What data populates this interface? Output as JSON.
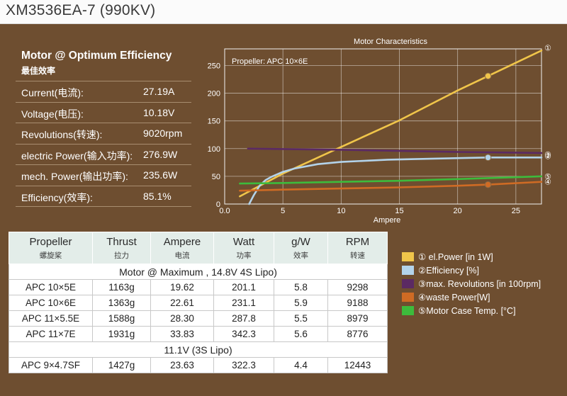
{
  "page_title": "XM3536EA-7 (990KV)",
  "optimum": {
    "heading": "Motor @ Optimum Efficiency",
    "subheading": "最佳效率",
    "rows": [
      {
        "label": "Current(电流):",
        "value": "27.19A"
      },
      {
        "label": "Voltage(电压):",
        "value": "10.18V"
      },
      {
        "label": "Revolutions(转速):",
        "value": "9020rpm"
      },
      {
        "label": "electric Power(输入功率):",
        "value": "276.9W"
      },
      {
        "label": "mech. Power(输出功率):",
        "value": "235.6W"
      },
      {
        "label": "Efficiency(效率):",
        "value": "85.1%"
      }
    ]
  },
  "chart_data": {
    "type": "line",
    "title": "Motor Characteristics",
    "annotation": "Propeller:  APC 10×6E",
    "xlabel": "Ampere",
    "ylabel": "",
    "xlim": [
      0,
      27.2
    ],
    "ylim": [
      0,
      280
    ],
    "xticks": [
      0,
      5,
      10,
      15,
      20,
      25
    ],
    "xtick_labels": [
      "0.0",
      "5",
      "10",
      "15",
      "20",
      "25"
    ],
    "yticks": [
      0,
      50,
      100,
      150,
      200,
      250
    ],
    "grid": true,
    "series": [
      {
        "name": "① el.Power [in 1W]",
        "marker": "①",
        "color": "#f0c54a",
        "x": [
          1.3,
          5,
          10,
          15,
          20,
          22.61,
          27.2
        ],
        "y": [
          14,
          55,
          103,
          151,
          205,
          231,
          277
        ],
        "point": {
          "x": 22.61,
          "y": 231
        }
      },
      {
        "name": "②Efficiency [%]",
        "marker": "②",
        "color": "#b3d3ea",
        "x": [
          2.1,
          2.5,
          3,
          3.5,
          4,
          5,
          6,
          8,
          10,
          14,
          18,
          22.61,
          27.2
        ],
        "y": [
          0,
          16,
          33,
          43,
          49,
          58,
          64,
          72,
          76,
          80,
          82,
          84,
          84
        ],
        "point": {
          "x": 22.61,
          "y": 84
        }
      },
      {
        "name": "③max. Revolutions [in 100rpm]",
        "marker": "③",
        "color": "#5b2a63",
        "x": [
          2,
          10,
          20,
          27.2
        ],
        "y": [
          100,
          98,
          94,
          92
        ]
      },
      {
        "name": "④waste Power[W]",
        "marker": "④",
        "color": "#cf6b24",
        "x": [
          1.3,
          5,
          10,
          15,
          20,
          22.61,
          27.2
        ],
        "y": [
          24,
          26,
          28,
          30,
          33,
          35,
          40
        ],
        "point": {
          "x": 22.61,
          "y": 35
        }
      },
      {
        "name": "⑤Motor Case Temp. [°C]",
        "marker": "⑤",
        "color": "#3dbb3c",
        "x": [
          1.3,
          5,
          10,
          15,
          20,
          27.2
        ],
        "y": [
          37,
          38,
          40,
          42,
          45,
          50
        ]
      }
    ]
  },
  "table": {
    "columns": [
      {
        "en": "Propeller",
        "cn": "螺旋桨"
      },
      {
        "en": "Thrust",
        "cn": "拉力"
      },
      {
        "en": "Ampere",
        "cn": "电流"
      },
      {
        "en": "Watt",
        "cn": "功率"
      },
      {
        "en": "g/W",
        "cn": "效率"
      },
      {
        "en": "RPM",
        "cn": "转速"
      }
    ],
    "groups": [
      {
        "title": "Motor @ Maximum , 14.8V 4S Lipo)",
        "rows": [
          [
            "APC 10×5E",
            "1163g",
            "19.62",
            "201.1",
            "5.8",
            "9298"
          ],
          [
            "APC 10×6E",
            "1363g",
            "22.61",
            "231.1",
            "5.9",
            "9188"
          ],
          [
            "APC 11×5.5E",
            "1588g",
            "28.30",
            "287.8",
            "5.5",
            "8979"
          ],
          [
            "APC 11×7E",
            "1931g",
            "33.83",
            "342.3",
            "5.6",
            "8776"
          ]
        ]
      },
      {
        "title": "11.1V (3S Lipo)",
        "rows": [
          [
            "APC 9×4.7SF",
            "1427g",
            "23.63",
            "322.3",
            "4.4",
            "12443"
          ]
        ]
      }
    ]
  }
}
